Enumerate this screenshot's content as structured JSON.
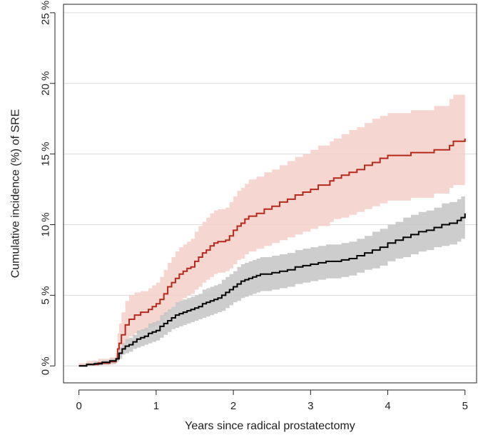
{
  "chart_data": {
    "type": "line",
    "title": "",
    "xlabel": "Years since radical prostatectomy",
    "ylabel": "Cumulative incidence (%) of SRE",
    "xlim": [
      -0.2,
      5.15
    ],
    "ylim": [
      -1.2,
      25.6
    ],
    "x_ticks": [
      0,
      1,
      2,
      3,
      4,
      5
    ],
    "x_tick_labels": [
      "0",
      "1",
      "2",
      "3",
      "4",
      "5"
    ],
    "y_ticks": [
      0,
      5,
      10,
      15,
      20,
      25
    ],
    "y_tick_labels": [
      "0 %",
      "5 %",
      "10 %",
      "15 %",
      "20 %",
      "25 %"
    ],
    "grid": "horizontal",
    "legend": "none",
    "step": true,
    "series": [
      {
        "color": "#b52a1c",
        "band_color": "#f3cfc8",
        "x": [
          0,
          0.1,
          0.25,
          0.4,
          0.48,
          0.5,
          0.52,
          0.55,
          0.6,
          0.65,
          0.72,
          0.8,
          0.9,
          0.95,
          1.0,
          1.05,
          1.1,
          1.15,
          1.2,
          1.25,
          1.3,
          1.35,
          1.4,
          1.45,
          1.5,
          1.55,
          1.6,
          1.65,
          1.7,
          1.75,
          1.8,
          1.85,
          1.9,
          1.95,
          2.0,
          2.05,
          2.1,
          2.15,
          2.2,
          2.3,
          2.4,
          2.5,
          2.6,
          2.7,
          2.8,
          2.9,
          3.0,
          3.1,
          3.25,
          3.3,
          3.4,
          3.5,
          3.6,
          3.7,
          3.8,
          3.9,
          4.0,
          4.3,
          4.6,
          4.8,
          4.85,
          5.0
        ],
        "values": [
          0.0,
          0.1,
          0.2,
          0.3,
          0.5,
          1.2,
          1.6,
          2.2,
          2.9,
          3.3,
          3.6,
          3.8,
          4.0,
          4.2,
          4.4,
          4.7,
          5.1,
          5.6,
          5.9,
          6.2,
          6.5,
          6.7,
          6.9,
          7.0,
          7.4,
          7.7,
          8.0,
          8.2,
          8.5,
          8.7,
          8.8,
          8.8,
          8.9,
          9.2,
          9.6,
          9.9,
          10.1,
          10.4,
          10.6,
          10.8,
          11.1,
          11.3,
          11.6,
          11.8,
          12.1,
          12.3,
          12.5,
          12.8,
          13.1,
          13.3,
          13.5,
          13.7,
          13.9,
          14.2,
          14.4,
          14.7,
          14.9,
          15.1,
          15.3,
          15.6,
          15.9,
          16.1
        ],
        "lower": [
          0.0,
          0.0,
          0.05,
          0.1,
          0.2,
          0.6,
          0.9,
          1.3,
          1.8,
          2.1,
          2.3,
          2.5,
          2.7,
          2.8,
          3.0,
          3.2,
          3.5,
          3.9,
          4.2,
          4.4,
          4.6,
          4.8,
          5.0,
          5.1,
          5.4,
          5.6,
          5.9,
          6.1,
          6.3,
          6.5,
          6.6,
          6.6,
          6.7,
          6.9,
          7.2,
          7.5,
          7.6,
          7.9,
          8.1,
          8.3,
          8.5,
          8.7,
          8.9,
          9.1,
          9.3,
          9.5,
          9.7,
          9.9,
          10.2,
          10.4,
          10.5,
          10.7,
          10.9,
          11.1,
          11.3,
          11.5,
          11.7,
          11.9,
          12.2,
          12.6,
          12.8,
          13.0
        ],
        "upper": [
          0.2,
          0.35,
          0.5,
          0.6,
          0.9,
          2.3,
          3.0,
          3.8,
          4.6,
          5.0,
          5.2,
          5.3,
          5.5,
          5.7,
          5.9,
          6.3,
          6.8,
          7.3,
          7.7,
          8.1,
          8.4,
          8.6,
          8.8,
          9.0,
          9.5,
          9.9,
          10.2,
          10.5,
          10.8,
          11.0,
          11.1,
          11.1,
          11.2,
          11.6,
          12.0,
          12.4,
          12.6,
          12.9,
          13.2,
          13.4,
          13.7,
          13.9,
          14.2,
          14.5,
          14.8,
          15.0,
          15.3,
          15.6,
          15.9,
          16.1,
          16.4,
          16.7,
          16.9,
          17.2,
          17.5,
          17.7,
          17.9,
          18.1,
          18.4,
          18.9,
          19.2,
          19.3
        ]
      },
      {
        "color": "#000000",
        "band_color": "#c4c4c4",
        "x": [
          0,
          0.1,
          0.2,
          0.3,
          0.4,
          0.48,
          0.52,
          0.56,
          0.6,
          0.65,
          0.7,
          0.75,
          0.8,
          0.85,
          0.9,
          0.95,
          1.0,
          1.05,
          1.1,
          1.15,
          1.2,
          1.25,
          1.3,
          1.35,
          1.4,
          1.45,
          1.5,
          1.55,
          1.6,
          1.65,
          1.7,
          1.75,
          1.8,
          1.85,
          1.9,
          1.95,
          2.0,
          2.05,
          2.1,
          2.15,
          2.2,
          2.25,
          2.3,
          2.35,
          2.4,
          2.5,
          2.6,
          2.7,
          2.8,
          2.9,
          3.0,
          3.1,
          3.2,
          3.3,
          3.4,
          3.5,
          3.6,
          3.7,
          3.8,
          3.9,
          4.0,
          4.1,
          4.2,
          4.3,
          4.4,
          4.5,
          4.6,
          4.7,
          4.8,
          4.9,
          4.95,
          5.0
        ],
        "values": [
          0.0,
          0.1,
          0.15,
          0.25,
          0.35,
          0.5,
          0.9,
          1.2,
          1.4,
          1.5,
          1.7,
          1.9,
          2.0,
          2.1,
          2.3,
          2.4,
          2.5,
          2.8,
          3.0,
          3.2,
          3.4,
          3.6,
          3.7,
          3.8,
          3.9,
          4.0,
          4.1,
          4.2,
          4.4,
          4.5,
          4.6,
          4.7,
          4.8,
          5.0,
          5.2,
          5.4,
          5.6,
          5.8,
          6.0,
          6.1,
          6.2,
          6.3,
          6.4,
          6.5,
          6.5,
          6.6,
          6.7,
          6.8,
          7.0,
          7.1,
          7.2,
          7.3,
          7.4,
          7.4,
          7.5,
          7.6,
          7.8,
          8.0,
          8.2,
          8.4,
          8.7,
          8.9,
          9.1,
          9.3,
          9.5,
          9.6,
          9.8,
          10.0,
          10.1,
          10.3,
          10.5,
          10.8
        ],
        "lower": [
          0.0,
          0.0,
          0.05,
          0.1,
          0.15,
          0.3,
          0.5,
          0.8,
          0.9,
          1.0,
          1.2,
          1.3,
          1.4,
          1.5,
          1.6,
          1.7,
          1.8,
          2.0,
          2.2,
          2.4,
          2.6,
          2.7,
          2.8,
          2.9,
          3.0,
          3.1,
          3.2,
          3.3,
          3.4,
          3.5,
          3.6,
          3.7,
          3.8,
          3.9,
          4.1,
          4.3,
          4.5,
          4.6,
          4.8,
          4.9,
          5.0,
          5.1,
          5.2,
          5.3,
          5.3,
          5.4,
          5.5,
          5.6,
          5.8,
          5.9,
          6.0,
          6.1,
          6.2,
          6.2,
          6.3,
          6.4,
          6.6,
          6.8,
          6.9,
          7.1,
          7.4,
          7.6,
          7.7,
          7.9,
          8.1,
          8.2,
          8.4,
          8.5,
          8.6,
          8.8,
          9.0,
          9.2
        ],
        "upper": [
          0.1,
          0.2,
          0.3,
          0.4,
          0.5,
          0.7,
          1.3,
          1.6,
          1.9,
          2.0,
          2.2,
          2.5,
          2.6,
          2.7,
          3.0,
          3.1,
          3.2,
          3.6,
          3.8,
          4.0,
          4.2,
          4.5,
          4.6,
          4.7,
          4.8,
          4.9,
          5.0,
          5.1,
          5.4,
          5.5,
          5.6,
          5.7,
          5.8,
          6.1,
          6.3,
          6.5,
          6.7,
          7.0,
          7.2,
          7.3,
          7.4,
          7.5,
          7.6,
          7.7,
          7.7,
          7.8,
          7.9,
          8.0,
          8.2,
          8.3,
          8.4,
          8.5,
          8.6,
          8.6,
          8.7,
          8.8,
          9.0,
          9.2,
          9.5,
          9.7,
          10.0,
          10.2,
          10.5,
          10.7,
          10.9,
          11.0,
          11.2,
          11.5,
          11.6,
          11.8,
          12.0,
          12.3
        ]
      }
    ]
  }
}
